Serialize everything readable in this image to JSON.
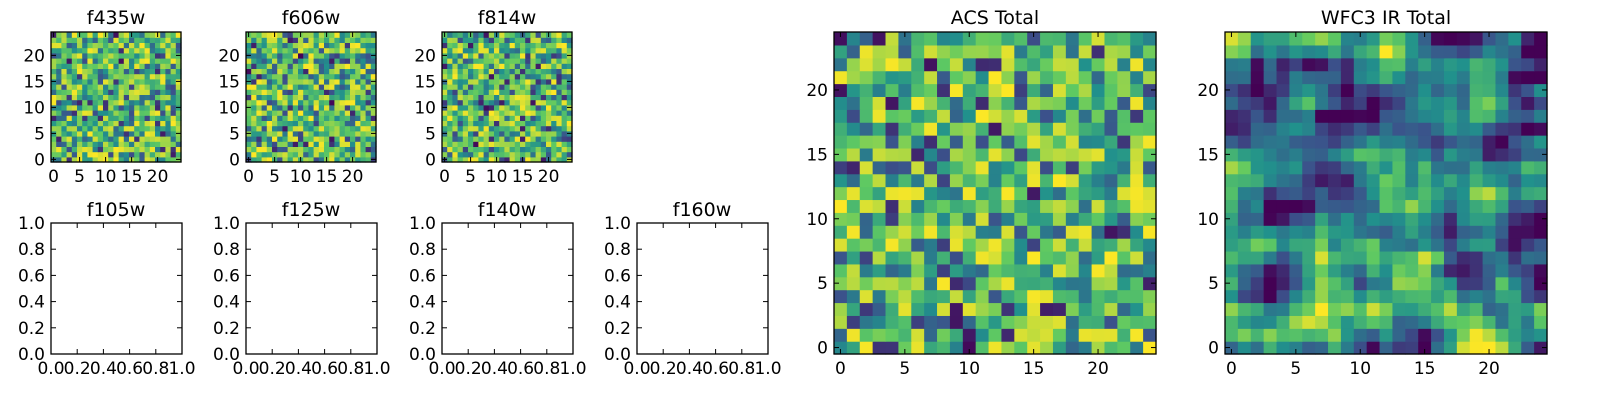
{
  "figure": {
    "background": "#ffffff"
  },
  "colormap": {
    "name": "viridis",
    "stops": [
      "#440154",
      "#3b528b",
      "#21918c",
      "#5ec962",
      "#fde725"
    ]
  },
  "chart_data": [
    {
      "title": "f435w",
      "type": "heatmap",
      "grid_size": 25,
      "seed": 11,
      "smooth": 0,
      "xlim": [
        -0.5,
        24.5
      ],
      "ylim": [
        -0.5,
        24.5
      ],
      "xticks": [
        "0",
        "5",
        "10",
        "15",
        "20"
      ],
      "yticks": [
        "0",
        "5",
        "10",
        "15",
        "20"
      ]
    },
    {
      "title": "f606w",
      "type": "heatmap",
      "grid_size": 25,
      "seed": 23,
      "smooth": 0,
      "xlim": [
        -0.5,
        24.5
      ],
      "ylim": [
        -0.5,
        24.5
      ],
      "xticks": [
        "0",
        "5",
        "10",
        "15",
        "20"
      ],
      "yticks": [
        "0",
        "5",
        "10",
        "15",
        "20"
      ]
    },
    {
      "title": "f814w",
      "type": "heatmap",
      "grid_size": 25,
      "seed": 37,
      "smooth": 0,
      "xlim": [
        -0.5,
        24.5
      ],
      "ylim": [
        -0.5,
        24.5
      ],
      "xticks": [
        "0",
        "5",
        "10",
        "15",
        "20"
      ],
      "yticks": [
        "0",
        "5",
        "10",
        "15",
        "20"
      ]
    },
    {
      "title": "f105w",
      "type": "empty",
      "xlim": [
        0,
        1
      ],
      "ylim": [
        0,
        1
      ],
      "xticks": [
        "0.0",
        "0.2",
        "0.4",
        "0.6",
        "0.8",
        "1.0"
      ],
      "yticks": [
        "0.0",
        "0.2",
        "0.4",
        "0.6",
        "0.8",
        "1.0"
      ]
    },
    {
      "title": "f125w",
      "type": "empty",
      "xlim": [
        0,
        1
      ],
      "ylim": [
        0,
        1
      ],
      "xticks": [
        "0.0",
        "0.2",
        "0.4",
        "0.6",
        "0.8",
        "1.0"
      ],
      "yticks": [
        "0.0",
        "0.2",
        "0.4",
        "0.6",
        "0.8",
        "1.0"
      ]
    },
    {
      "title": "f140w",
      "type": "empty",
      "xlim": [
        0,
        1
      ],
      "ylim": [
        0,
        1
      ],
      "xticks": [
        "0.0",
        "0.2",
        "0.4",
        "0.6",
        "0.8",
        "1.0"
      ],
      "yticks": [
        "0.0",
        "0.2",
        "0.4",
        "0.6",
        "0.8",
        "1.0"
      ]
    },
    {
      "title": "f160w",
      "type": "empty",
      "xlim": [
        0,
        1
      ],
      "ylim": [
        0,
        1
      ],
      "xticks": [
        "0.0",
        "0.2",
        "0.4",
        "0.6",
        "0.8",
        "1.0"
      ],
      "yticks": [
        "0.0",
        "0.2",
        "0.4",
        "0.6",
        "0.8",
        "1.0"
      ]
    },
    {
      "title": "ACS Total",
      "type": "heatmap",
      "grid_size": 25,
      "seed": 53,
      "smooth": 0,
      "xlim": [
        -0.5,
        24.5
      ],
      "ylim": [
        -0.5,
        24.5
      ],
      "xticks": [
        "0",
        "5",
        "10",
        "15",
        "20"
      ],
      "yticks": [
        "0",
        "5",
        "10",
        "15",
        "20"
      ]
    },
    {
      "title": "WFC3 IR Total",
      "type": "heatmap",
      "grid_size": 25,
      "seed": 71,
      "smooth": 1,
      "xlim": [
        -0.5,
        24.5
      ],
      "ylim": [
        -0.5,
        24.5
      ],
      "xticks": [
        "0",
        "5",
        "10",
        "15",
        "20"
      ],
      "yticks": [
        "0",
        "5",
        "10",
        "15",
        "20"
      ]
    }
  ]
}
